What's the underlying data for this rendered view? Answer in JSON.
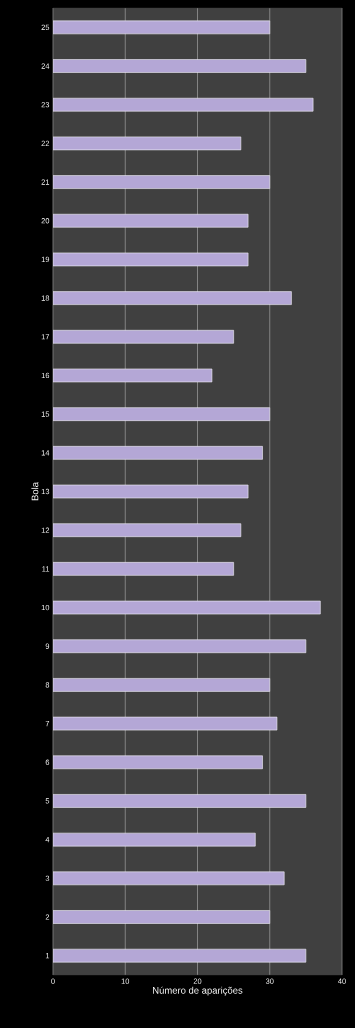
{
  "chart_data": {
    "type": "bar",
    "orientation": "horizontal",
    "xlabel": "Número de aparições",
    "ylabel": "Bola",
    "categories": [
      "25",
      "24",
      "23",
      "22",
      "21",
      "20",
      "19",
      "18",
      "17",
      "16",
      "15",
      "14",
      "13",
      "12",
      "11",
      "10",
      "9",
      "8",
      "7",
      "6",
      "5",
      "4",
      "3",
      "2",
      "1"
    ],
    "values": [
      30,
      35,
      36,
      26,
      30,
      27,
      27,
      33,
      25,
      22,
      30,
      29,
      27,
      26,
      25,
      37,
      35,
      30,
      31,
      29,
      35,
      28,
      32,
      30,
      35
    ],
    "color": "#b4a7d6",
    "xlim": [
      0,
      40
    ],
    "xticks": [
      0,
      10,
      20,
      30,
      40
    ],
    "grid": "x"
  }
}
